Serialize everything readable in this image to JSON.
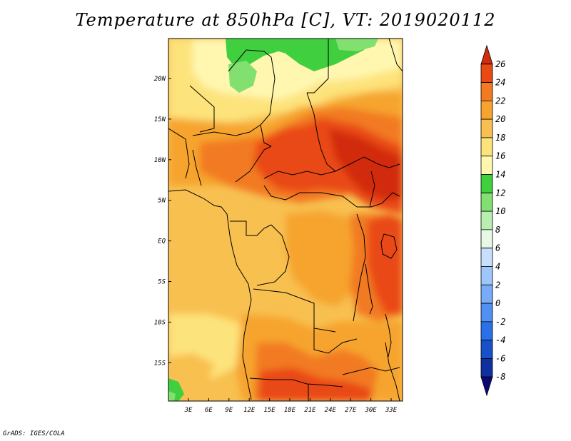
{
  "title": "Temperature at 850hPa [C], VT: 2019020112",
  "credit": "GrADS: IGES/COLA",
  "colors": {
    "c_lt8": "#ddddff",
    "c_m8": "#0a0a70",
    "c_m6": "#1030a0",
    "c_m4": "#1850c8",
    "c_m2": "#2a70e8",
    "c_0": "#4f90f2",
    "c_2": "#78acf8",
    "c_4": "#9fc6fa",
    "c_6": "#c7defc",
    "c_8": "#e6f8e6",
    "c_10": "#b8eeb0",
    "c_12": "#82e070",
    "c_14": "#3fcf3f",
    "c_16": "#fff7b0",
    "c_18": "#fde37c",
    "c_20": "#f8c050",
    "c_22": "#f6a42f",
    "c_24": "#f27a20",
    "c_26": "#e94a14",
    "c_gt26": "#d22b0e",
    "border": "#000000"
  },
  "map": {
    "x_ticks": [
      "3E",
      "6E",
      "9E",
      "12E",
      "15E",
      "18E",
      "21E",
      "24E",
      "27E",
      "30E",
      "33E"
    ],
    "y_ticks": [
      "20N",
      "15N",
      "10N",
      "5N",
      "EQ",
      "5S",
      "10S",
      "15S"
    ]
  },
  "colorbar": {
    "labels": [
      "26",
      "24",
      "22",
      "20",
      "18",
      "16",
      "14",
      "12",
      "10",
      "8",
      "6",
      "4",
      "2",
      "0",
      "-2",
      "-4",
      "-6",
      "-8"
    ],
    "bins": [
      "c_gt26",
      "c_26",
      "c_24",
      "c_22",
      "c_20",
      "c_18",
      "c_16",
      "c_14",
      "c_12",
      "c_10",
      "c_8",
      "c_6",
      "c_4",
      "c_2",
      "c_0",
      "c_m2",
      "c_m4",
      "c_m6",
      "c_m8"
    ],
    "under_color": "c_lt8",
    "over_color": "c_gt26"
  }
}
